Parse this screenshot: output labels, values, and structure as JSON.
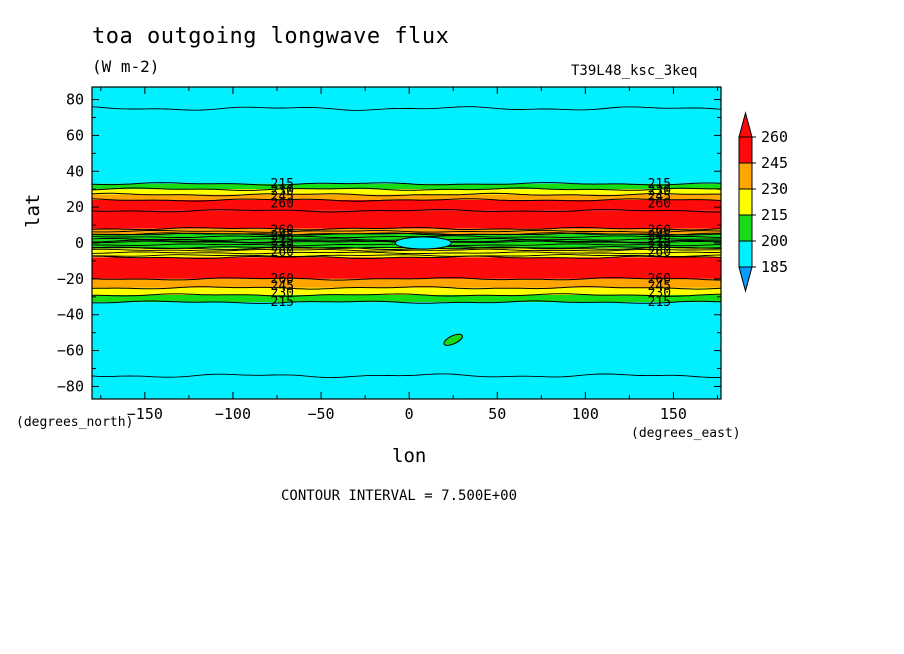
{
  "header": {
    "title": "toa outgoing longwave flux",
    "units": "(W m-2)",
    "run_id": "T39L48_ksc_3keq"
  },
  "footer": {
    "contour_interval": "CONTOUR INTERVAL = 7.500E+00"
  },
  "colors": {
    "background": "#ffffff",
    "c185": "#0a9bff",
    "c200": "#00f0ff",
    "c215": "#17dd17",
    "c230": "#ffff00",
    "c245": "#ffa500",
    "c260": "#ff0a0a",
    "line": "#000000"
  },
  "chart_data": {
    "type": "heatmap",
    "title": "toa outgoing longwave flux",
    "subtitle": "(W m-2)",
    "xlabel": "lon",
    "ylabel": "lat",
    "x_unit_label": "(degrees_east)",
    "y_unit_label": "(degrees_north)",
    "xlim": [
      -180,
      177
    ],
    "ylim": [
      -87,
      87
    ],
    "x_ticks": [
      -150,
      -100,
      -50,
      0,
      50,
      100,
      150
    ],
    "y_ticks": [
      80,
      60,
      40,
      20,
      0,
      -20,
      -40,
      -60,
      -80
    ],
    "colorbar": {
      "levels": [
        185,
        200,
        215,
        230,
        245,
        260
      ],
      "labels": [
        "260",
        "245",
        "230",
        "215",
        "200",
        "185"
      ],
      "extend": "both"
    },
    "contour_interval": 7.5,
    "zonal_bands": [
      {
        "lat": [
          33,
          87
        ],
        "level": 200
      },
      {
        "lat": [
          30,
          33
        ],
        "level": 215
      },
      {
        "lat": [
          27,
          30
        ],
        "level": 230
      },
      {
        "lat": [
          24,
          27
        ],
        "level": 245
      },
      {
        "lat": [
          18,
          24
        ],
        "level": 260
      },
      {
        "lat": [
          8,
          18
        ],
        "level": 260
      },
      {
        "lat": [
          5,
          8
        ],
        "level": 245
      },
      {
        "lat": [
          1,
          5
        ],
        "level": 215
      },
      {
        "lat": [
          -3,
          1
        ],
        "level": 215
      },
      {
        "lat": [
          -8,
          -3
        ],
        "level": 230
      },
      {
        "lat": [
          -20,
          -8
        ],
        "level": 260
      },
      {
        "lat": [
          -25,
          -20
        ],
        "level": 245
      },
      {
        "lat": [
          -29,
          -25
        ],
        "level": 230
      },
      {
        "lat": [
          -33,
          -29
        ],
        "level": 215
      },
      {
        "lat": [
          -87,
          -33
        ],
        "level": 200
      }
    ],
    "contour_labels": [
      {
        "lon": -72,
        "lat": 33,
        "text": "215"
      },
      {
        "lon": -72,
        "lat": 29,
        "text": "230"
      },
      {
        "lon": -72,
        "lat": 26,
        "text": "245"
      },
      {
        "lon": -72,
        "lat": 22,
        "text": "260"
      },
      {
        "lon": -72,
        "lat": 7,
        "text": "260"
      },
      {
        "lon": -72,
        "lat": 4,
        "text": "245"
      },
      {
        "lon": -72,
        "lat": 1,
        "text": "215"
      },
      {
        "lon": -72,
        "lat": -2,
        "text": "230"
      },
      {
        "lon": -72,
        "lat": -5,
        "text": "260"
      },
      {
        "lon": -72,
        "lat": -20,
        "text": "260"
      },
      {
        "lon": -72,
        "lat": -24,
        "text": "245"
      },
      {
        "lon": -72,
        "lat": -28,
        "text": "230"
      },
      {
        "lon": -72,
        "lat": -33,
        "text": "215"
      },
      {
        "lon": 142,
        "lat": 33,
        "text": "215"
      },
      {
        "lon": 142,
        "lat": 29,
        "text": "230"
      },
      {
        "lon": 142,
        "lat": 26,
        "text": "245"
      },
      {
        "lon": 142,
        "lat": 22,
        "text": "260"
      },
      {
        "lon": 142,
        "lat": 7,
        "text": "260"
      },
      {
        "lon": 142,
        "lat": 4,
        "text": "245"
      },
      {
        "lon": 142,
        "lat": 1,
        "text": "215"
      },
      {
        "lon": 142,
        "lat": -2,
        "text": "230"
      },
      {
        "lon": 142,
        "lat": -5,
        "text": "260"
      },
      {
        "lon": 142,
        "lat": -20,
        "text": "260"
      },
      {
        "lon": 142,
        "lat": -24,
        "text": "245"
      },
      {
        "lon": 142,
        "lat": -28,
        "text": "230"
      },
      {
        "lon": 142,
        "lat": -33,
        "text": "215"
      }
    ],
    "blobs": [
      {
        "lon": 8,
        "lat": 0,
        "level": 200
      },
      {
        "lon": 25,
        "lat": -54,
        "level": 215
      }
    ]
  }
}
